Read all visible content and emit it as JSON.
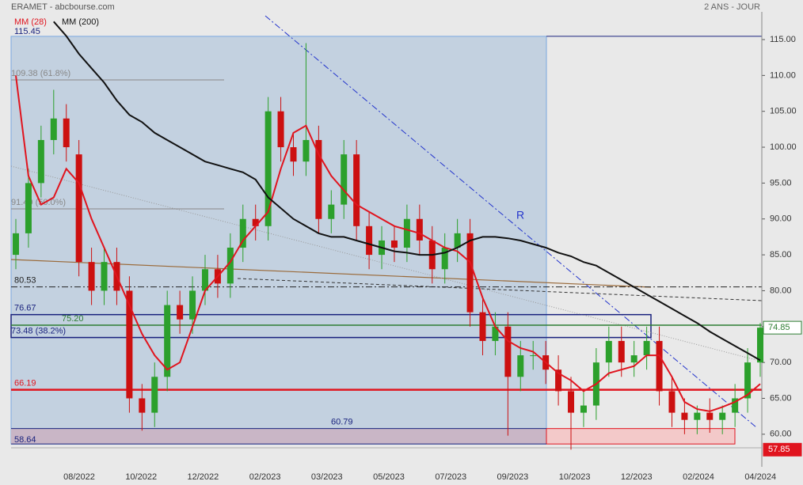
{
  "chart_data": {
    "type": "candlestick",
    "title": "ERAMET - abcbourse.com",
    "subtitle": "2 ANS - JOUR",
    "annotation": "R",
    "open": [
      85,
      88,
      95,
      101,
      104,
      99,
      84,
      80,
      84,
      80,
      65,
      63,
      68,
      78,
      76,
      80,
      83,
      81,
      86,
      90,
      89,
      105,
      100,
      98,
      101,
      90,
      92,
      99,
      89,
      85,
      87,
      86,
      90,
      87,
      83,
      86,
      88,
      77,
      73,
      75,
      68,
      71,
      71,
      69,
      66,
      63,
      64,
      70,
      73,
      70,
      71,
      73,
      66,
      63,
      62,
      63,
      62,
      63,
      65,
      70
    ],
    "high": [
      90,
      97,
      103,
      108,
      106,
      101,
      86,
      86,
      86,
      82,
      67,
      70,
      80,
      80,
      82,
      85,
      85,
      88,
      92,
      92,
      107,
      107,
      102,
      114.5,
      103,
      94,
      101,
      101,
      91,
      89,
      89,
      92,
      92,
      89,
      88,
      90,
      90,
      79,
      77,
      77,
      73,
      73,
      73,
      71,
      68,
      66,
      72,
      75,
      75,
      73,
      75,
      75,
      68,
      65,
      64,
      65,
      64,
      67,
      72,
      75.5
    ],
    "low": [
      83,
      86,
      93,
      99,
      98,
      82,
      78,
      78,
      78,
      63,
      60.5,
      61,
      66,
      74,
      74,
      78,
      79,
      79,
      84,
      87,
      87,
      98,
      96,
      96,
      88,
      88,
      90,
      87,
      83,
      83,
      84,
      84,
      85,
      81,
      81,
      84,
      75,
      71,
      71,
      59.8,
      66,
      69,
      67,
      64,
      57.85,
      61,
      62,
      68,
      68,
      68,
      69,
      64,
      61,
      60,
      60,
      60.2,
      60,
      61,
      63,
      68
    ],
    "close": [
      88,
      95,
      101,
      104,
      100,
      84,
      80,
      84,
      80,
      65,
      63,
      68,
      78,
      76,
      80,
      83,
      81,
      86,
      90,
      89,
      105,
      100,
      98,
      101,
      90,
      92,
      99,
      89,
      85,
      87,
      86,
      90,
      87,
      83,
      86,
      88,
      77,
      73,
      75,
      68,
      71,
      71,
      69,
      66,
      63,
      64,
      70,
      73,
      70,
      71,
      73,
      66,
      63,
      62,
      63,
      62,
      63,
      65,
      70,
      74.85
    ],
    "up_color": "#2ca02c",
    "down_color": "#cc1010",
    "series": [
      {
        "name": "MM (28)",
        "color": "#e0141e",
        "values": [
          110,
          96,
          92,
          93,
          97,
          95,
          90,
          86,
          82,
          78,
          74,
          71,
          69,
          70,
          75,
          80,
          82,
          84,
          87,
          89,
          91,
          97,
          102,
          103,
          99,
          96,
          94,
          92,
          91,
          90,
          89,
          88.5,
          88,
          87,
          86,
          85.5,
          84,
          79,
          75,
          73,
          72,
          71.5,
          70,
          68.5,
          67.5,
          66,
          67,
          68.5,
          69,
          69.5,
          71,
          71,
          68,
          64.5,
          63.5,
          63.2,
          63.8,
          64.5,
          65.5,
          67
        ]
      },
      {
        "name": "MM (200)",
        "color": "#111111",
        "values": [
          null,
          null,
          null,
          117.5,
          115.5,
          113,
          111,
          109,
          106.5,
          104.5,
          103.5,
          102,
          101,
          100,
          99,
          98,
          97.5,
          97,
          96.5,
          95.5,
          93,
          91.5,
          90,
          89,
          88,
          87.5,
          87.5,
          87,
          86.5,
          86,
          85.5,
          85.3,
          85,
          85,
          85.3,
          86,
          87,
          87.5,
          87.5,
          87.3,
          87,
          86.5,
          86,
          85.3,
          84.8,
          84,
          83.5,
          82.5,
          81.5,
          80.5,
          79.5,
          78.5,
          77.5,
          76.5,
          75.5,
          74.3,
          73.3,
          72.3,
          71.3,
          70.3
        ]
      }
    ],
    "ylim": [
      55.46,
      118.86
    ],
    "yticks": [
      {
        "value": 60,
        "label": "60.00"
      },
      {
        "value": 65,
        "label": "65.00"
      },
      {
        "value": 70,
        "label": "70.00"
      },
      {
        "value": 75,
        "label": "75.00"
      },
      {
        "value": 80,
        "label": "80.00"
      },
      {
        "value": 85,
        "label": "85.00"
      },
      {
        "value": 90,
        "label": "90.00"
      },
      {
        "value": 95,
        "label": "95.00"
      },
      {
        "value": 100,
        "label": "100.00"
      },
      {
        "value": 105,
        "label": "105.00"
      },
      {
        "value": 110,
        "label": "110.00"
      },
      {
        "value": 115,
        "label": "115.00"
      }
    ],
    "x_tick_labels": [
      "08/2022",
      "10/2022",
      "12/2022",
      "02/2023",
      "03/2023",
      "05/2023",
      "07/2023",
      "09/2023",
      "10/2023",
      "12/2023",
      "02/2024",
      "04/2024"
    ],
    "levels": [
      {
        "value": 115.45,
        "label": "115.45",
        "color": "#1a237e"
      },
      {
        "value": 109.38,
        "label": "109.38 (61.8%)",
        "color": "#888888"
      },
      {
        "value": 91.4,
        "label": "91.40 (50.0%)",
        "color": "#888888"
      },
      {
        "value": 80.53,
        "label": "80.53",
        "color": "#222222"
      },
      {
        "value": 76.67,
        "label": "76.67",
        "color": "#1a237e"
      },
      {
        "value": 75.2,
        "label": "75.20",
        "color": "#2e7d32"
      },
      {
        "value": 73.48,
        "label": "73.48 (38.2%)",
        "color": "#1a237e"
      },
      {
        "value": 66.19,
        "label": "66.19",
        "color": "#e0141e"
      },
      {
        "value": 60.79,
        "label": "60.79",
        "color": "#1a237e"
      },
      {
        "value": 58.64,
        "label": "58.64",
        "color": "#1a237e"
      }
    ],
    "last_price": {
      "value": 74.85,
      "label": "74.85",
      "color": "#2e7d32"
    },
    "low_price": {
      "value": 57.85,
      "label": "57.85",
      "color": "#e0141e"
    }
  }
}
